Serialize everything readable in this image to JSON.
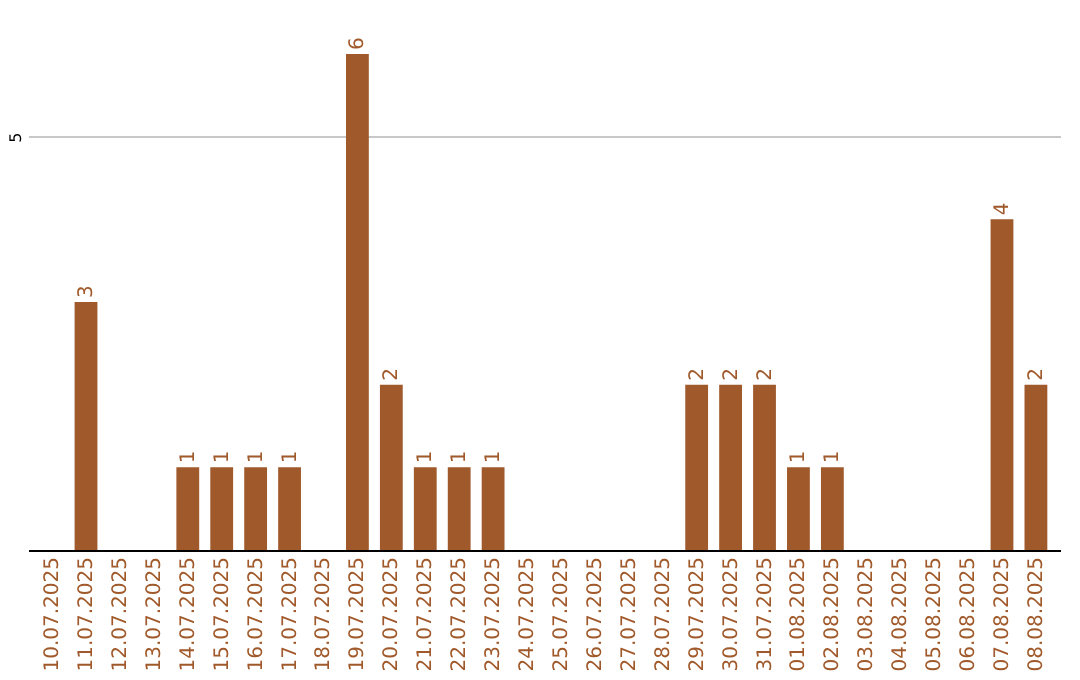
{
  "chart_data": {
    "type": "bar",
    "categories": [
      "10.07.2025",
      "11.07.2025",
      "12.07.2025",
      "13.07.2025",
      "14.07.2025",
      "15.07.2025",
      "16.07.2025",
      "17.07.2025",
      "18.07.2025",
      "19.07.2025",
      "20.07.2025",
      "21.07.2025",
      "22.07.2025",
      "23.07.2025",
      "24.07.2025",
      "25.07.2025",
      "26.07.2025",
      "27.07.2025",
      "28.07.2025",
      "29.07.2025",
      "30.07.2025",
      "31.07.2025",
      "01.08.2025",
      "02.08.2025",
      "03.08.2025",
      "04.08.2025",
      "05.08.2025",
      "06.08.2025",
      "07.08.2025",
      "08.08.2025"
    ],
    "values": [
      0,
      3,
      0,
      0,
      1,
      1,
      1,
      1,
      0,
      6,
      2,
      1,
      1,
      1,
      0,
      0,
      0,
      0,
      0,
      2,
      2,
      2,
      1,
      1,
      0,
      0,
      0,
      0,
      4,
      2
    ],
    "value_labels": [
      null,
      "3",
      null,
      null,
      "1",
      "1",
      "1",
      "1",
      null,
      "6",
      "2",
      "1",
      "1",
      "1",
      null,
      null,
      null,
      null,
      null,
      "2",
      "2",
      "2",
      "1",
      "1",
      null,
      null,
      null,
      null,
      "4",
      "2"
    ],
    "color": "#a0592a",
    "ylim": [
      0,
      6
    ],
    "yticks": [
      5
    ],
    "grid": "y"
  }
}
